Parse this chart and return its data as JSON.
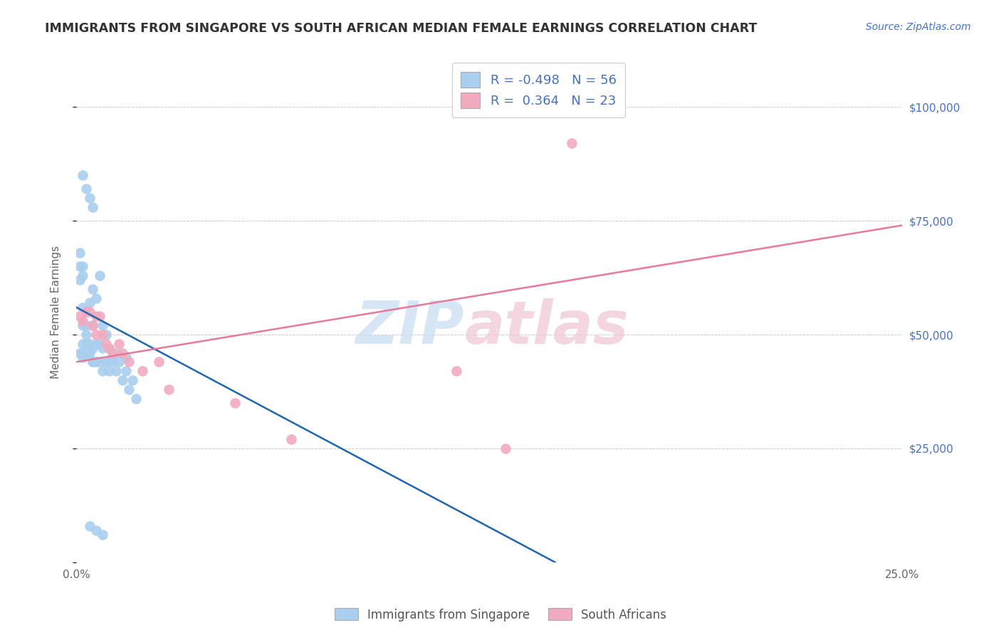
{
  "title": "IMMIGRANTS FROM SINGAPORE VS SOUTH AFRICAN MEDIAN FEMALE EARNINGS CORRELATION CHART",
  "source": "Source: ZipAtlas.com",
  "ylabel": "Median Female Earnings",
  "xmin": 0.0,
  "xmax": 0.25,
  "ymin": 0,
  "ymax": 110000,
  "yticks": [
    0,
    25000,
    50000,
    75000,
    100000
  ],
  "ytick_labels": [
    "",
    "$25,000",
    "$50,000",
    "$75,000",
    "$100,000"
  ],
  "xticks": [
    0.0,
    0.05,
    0.1,
    0.15,
    0.2,
    0.25
  ],
  "xtick_labels": [
    "0.0%",
    "",
    "",
    "",
    "",
    "25.0%"
  ],
  "blue_color": "#AACFEE",
  "pink_color": "#F2AABF",
  "blue_line_color": "#2166AC",
  "pink_line_color": "#E8799A",
  "blue_R": -0.498,
  "blue_N": 56,
  "pink_R": 0.364,
  "pink_N": 23,
  "legend_label_blue": "Immigrants from Singapore",
  "legend_label_pink": "South Africans",
  "blue_line_x0": 0.0,
  "blue_line_y0": 56000,
  "blue_line_x1": 0.145,
  "blue_line_y1": 0,
  "pink_line_x0": 0.0,
  "pink_line_y0": 44000,
  "pink_line_x1": 0.25,
  "pink_line_y1": 74000,
  "blue_scatter_x": [
    0.001,
    0.001,
    0.001,
    0.002,
    0.002,
    0.002,
    0.002,
    0.002,
    0.002,
    0.003,
    0.003,
    0.003,
    0.003,
    0.004,
    0.004,
    0.004,
    0.005,
    0.005,
    0.005,
    0.005,
    0.006,
    0.006,
    0.006,
    0.007,
    0.007,
    0.008,
    0.008,
    0.008,
    0.009,
    0.009,
    0.01,
    0.01,
    0.01,
    0.011,
    0.012,
    0.012,
    0.013,
    0.014,
    0.015,
    0.015,
    0.016,
    0.017,
    0.018,
    0.002,
    0.003,
    0.004,
    0.005,
    0.001,
    0.002,
    0.003,
    0.005,
    0.006,
    0.007,
    0.004,
    0.006,
    0.008
  ],
  "blue_scatter_y": [
    65000,
    68000,
    62000,
    65000,
    63000,
    56000,
    52000,
    48000,
    46000,
    55000,
    52000,
    50000,
    48000,
    57000,
    48000,
    46000,
    60000,
    52000,
    47000,
    44000,
    58000,
    48000,
    44000,
    63000,
    48000,
    52000,
    47000,
    42000,
    50000,
    44000,
    47000,
    44000,
    42000,
    44000,
    46000,
    42000,
    44000,
    40000,
    45000,
    42000,
    38000,
    40000,
    36000,
    85000,
    82000,
    80000,
    78000,
    46000,
    45000,
    46000,
    44000,
    44000,
    44000,
    8000,
    7000,
    6000
  ],
  "pink_scatter_x": [
    0.001,
    0.002,
    0.003,
    0.004,
    0.005,
    0.006,
    0.006,
    0.007,
    0.008,
    0.009,
    0.01,
    0.011,
    0.013,
    0.014,
    0.016,
    0.02,
    0.025,
    0.028,
    0.048,
    0.065,
    0.115,
    0.13,
    0.15
  ],
  "pink_scatter_y": [
    54000,
    53000,
    55000,
    55000,
    52000,
    54000,
    50000,
    54000,
    50000,
    48000,
    47000,
    46000,
    48000,
    46000,
    44000,
    42000,
    44000,
    38000,
    35000,
    27000,
    42000,
    25000,
    92000
  ]
}
